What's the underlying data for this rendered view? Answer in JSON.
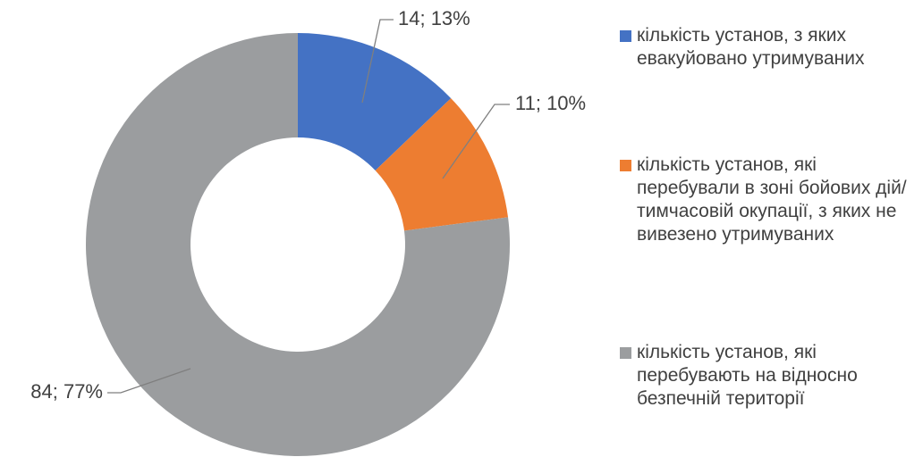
{
  "chart_data": {
    "type": "donut",
    "categories": [
      "кількість установ, з яких евакуйовано утримуваних",
      "кількість установ, які перебували в зоні бойових дій/тимчасовій окупації, з яких не вивезено утримуваних",
      "кількість установ, які перебувають на відносно безпечній території"
    ],
    "values": [
      14,
      11,
      84
    ],
    "value_labels": [
      "14; 13%",
      "11; 10%",
      "84; 77%"
    ],
    "colors": [
      "#4472c4",
      "#ed7d31",
      "#9b9d9f"
    ],
    "legend": "right"
  }
}
